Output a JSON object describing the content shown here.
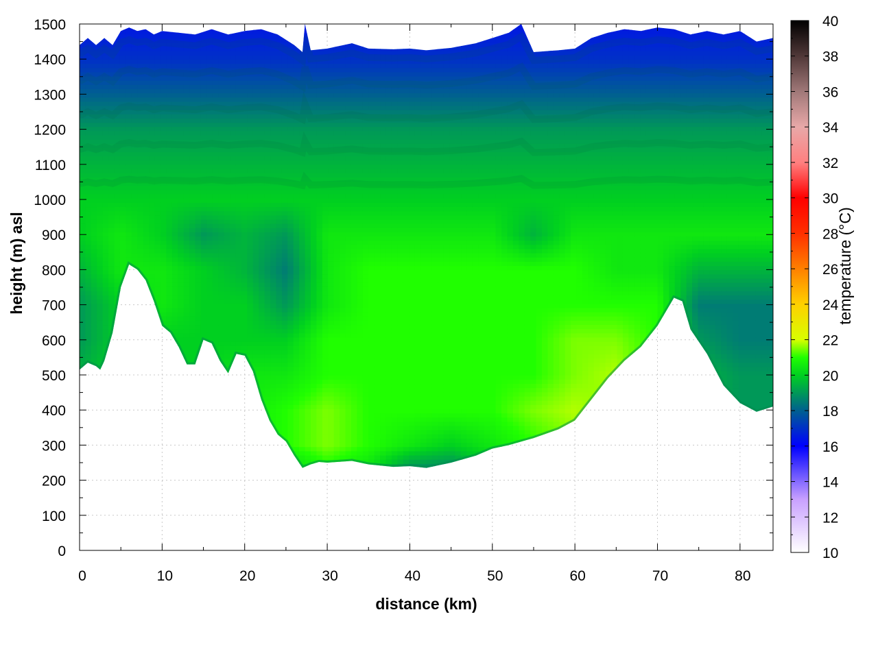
{
  "chart_data": {
    "type": "heatmap",
    "title": "",
    "xlabel": "distance (km)",
    "ylabel": "height (m) asl",
    "colorbar_label": "temperature (°C)",
    "xlim": [
      0,
      84
    ],
    "ylim": [
      0,
      1500
    ],
    "x_ticks": [
      0,
      10,
      20,
      30,
      40,
      50,
      60,
      70,
      80
    ],
    "y_ticks": [
      0,
      100,
      200,
      300,
      400,
      500,
      600,
      700,
      800,
      900,
      1000,
      1100,
      1200,
      1300,
      1400,
      1500
    ],
    "color_range": [
      10,
      40
    ],
    "color_ticks": [
      10,
      12,
      14,
      16,
      18,
      20,
      22,
      24,
      26,
      28,
      30,
      32,
      34,
      36,
      38,
      40
    ],
    "grid": true,
    "colormap": [
      {
        "value": 10,
        "color": "#ffffff"
      },
      {
        "value": 13,
        "color": "#c8a0ff"
      },
      {
        "value": 16,
        "color": "#0000ff"
      },
      {
        "value": 18,
        "color": "#006090"
      },
      {
        "value": 20,
        "color": "#00d020"
      },
      {
        "value": 21,
        "color": "#20ff00"
      },
      {
        "value": 22,
        "color": "#d8ff00"
      },
      {
        "value": 24,
        "color": "#ffd000"
      },
      {
        "value": 26,
        "color": "#ff8000"
      },
      {
        "value": 28,
        "color": "#ff3000"
      },
      {
        "value": 30,
        "color": "#ff0000"
      },
      {
        "value": 32,
        "color": "#ff8080"
      },
      {
        "value": 34,
        "color": "#e8a8a8"
      },
      {
        "value": 36,
        "color": "#a07878"
      },
      {
        "value": 38,
        "color": "#503838"
      },
      {
        "value": 40,
        "color": "#000000"
      }
    ],
    "terrain_profile": {
      "x": [
        0,
        1,
        2,
        2.5,
        3,
        4,
        5,
        6,
        7,
        8,
        9,
        10,
        11,
        12,
        13,
        14,
        15,
        16,
        17,
        18,
        19,
        20,
        21,
        22,
        23,
        24,
        25,
        26,
        27,
        28,
        29,
        30,
        33,
        35,
        38,
        40,
        42,
        45,
        48,
        50,
        52,
        55,
        58,
        60,
        62,
        64,
        66,
        68,
        70,
        72,
        73,
        74,
        76,
        78,
        80,
        82,
        84
      ],
      "height": [
        515,
        535,
        525,
        515,
        540,
        620,
        750,
        815,
        800,
        770,
        710,
        640,
        620,
        580,
        530,
        530,
        600,
        590,
        540,
        505,
        560,
        555,
        510,
        430,
        370,
        330,
        310,
        270,
        235,
        245,
        252,
        250,
        255,
        245,
        238,
        240,
        235,
        250,
        270,
        290,
        300,
        320,
        345,
        370,
        430,
        490,
        540,
        580,
        640,
        720,
        710,
        630,
        560,
        470,
        420,
        395,
        410
      ]
    },
    "top_profile": {
      "x": [
        0,
        1,
        2,
        3,
        4,
        5,
        6,
        7,
        8,
        9,
        10,
        12,
        14,
        16,
        18,
        20,
        22,
        24,
        26,
        27,
        27.3,
        28,
        30,
        33,
        35,
        38,
        40,
        42,
        45,
        48,
        50,
        52,
        53.5,
        55,
        58,
        60,
        62,
        64,
        66,
        68,
        70,
        72,
        74,
        76,
        78,
        80,
        82,
        84
      ],
      "height": [
        1440,
        1460,
        1440,
        1460,
        1440,
        1480,
        1490,
        1480,
        1485,
        1470,
        1480,
        1475,
        1470,
        1485,
        1470,
        1480,
        1485,
        1470,
        1440,
        1420,
        1500,
        1425,
        1430,
        1445,
        1430,
        1428,
        1430,
        1425,
        1432,
        1445,
        1460,
        1475,
        1500,
        1420,
        1425,
        1430,
        1460,
        1475,
        1485,
        1480,
        1490,
        1485,
        1470,
        1480,
        1470,
        1480,
        1450,
        1460
      ]
    },
    "temperature_grid": {
      "note_heights_m": [
        200,
        300,
        400,
        500,
        600,
        700,
        800,
        900,
        1000,
        1100,
        1200,
        1300,
        1400,
        1500
      ],
      "x": [
        0,
        5,
        10,
        15,
        20,
        25,
        30,
        35,
        40,
        45,
        50,
        55,
        60,
        65,
        70,
        75,
        80,
        84
      ],
      "values": [
        [
          19.5,
          19.5,
          19.5,
          19.5,
          19.5,
          19.5,
          20.5,
          20.0,
          18.0,
          18.0,
          19.5,
          20.0,
          20.5,
          21.0,
          20.5,
          19.0,
          18.5,
          18.5
        ],
        [
          20.0,
          20.0,
          20.0,
          20.0,
          20.5,
          21.0,
          21.5,
          21.0,
          20.5,
          20.0,
          20.5,
          21.0,
          21.5,
          21.5,
          21.0,
          19.5,
          19.0,
          19.0
        ],
        [
          20.0,
          20.0,
          20.0,
          20.0,
          20.5,
          21.0,
          21.5,
          21.0,
          21.0,
          21.0,
          21.0,
          21.5,
          21.8,
          21.5,
          21.0,
          19.5,
          19.0,
          19.0
        ],
        [
          19.5,
          20.0,
          20.0,
          20.0,
          20.5,
          20.5,
          21.0,
          21.0,
          21.0,
          21.0,
          21.0,
          21.0,
          21.5,
          21.8,
          21.0,
          19.5,
          19.0,
          19.0
        ],
        [
          19.0,
          20.0,
          20.0,
          20.0,
          20.0,
          20.0,
          21.0,
          21.0,
          21.0,
          21.0,
          21.0,
          21.0,
          21.5,
          21.5,
          21.0,
          19.0,
          18.5,
          18.5
        ],
        [
          19.0,
          20.0,
          20.5,
          20.0,
          20.0,
          19.0,
          20.5,
          21.0,
          21.0,
          21.0,
          21.0,
          21.0,
          21.0,
          21.0,
          21.0,
          18.5,
          18.5,
          18.5
        ],
        [
          19.5,
          20.5,
          20.5,
          20.0,
          19.5,
          18.5,
          20.5,
          21.0,
          21.0,
          21.0,
          21.0,
          21.0,
          21.0,
          20.5,
          20.5,
          19.5,
          19.5,
          19.5
        ],
        [
          20.0,
          20.5,
          20.0,
          19.0,
          19.5,
          19.0,
          20.5,
          20.5,
          20.5,
          20.5,
          20.5,
          19.5,
          20.5,
          20.5,
          20.5,
          20.5,
          20.5,
          20.5
        ],
        [
          20.0,
          20.0,
          20.0,
          20.0,
          20.0,
          20.0,
          20.0,
          20.0,
          20.0,
          20.0,
          20.0,
          20.0,
          20.0,
          20.0,
          20.0,
          20.0,
          20.0,
          20.0
        ],
        [
          19.5,
          19.5,
          19.5,
          19.5,
          19.5,
          19.5,
          19.5,
          19.5,
          19.5,
          19.5,
          19.5,
          19.5,
          19.5,
          19.5,
          19.5,
          19.5,
          19.5,
          19.5
        ],
        [
          19.0,
          19.0,
          19.0,
          19.0,
          19.0,
          19.0,
          19.0,
          19.0,
          19.0,
          19.0,
          19.0,
          19.0,
          19.0,
          19.0,
          19.0,
          19.0,
          19.0,
          19.0
        ],
        [
          18.0,
          18.0,
          18.0,
          18.0,
          18.0,
          18.0,
          18.0,
          18.0,
          18.0,
          18.0,
          18.0,
          18.0,
          18.0,
          18.0,
          18.0,
          18.0,
          18.0,
          18.0
        ],
        [
          17.0,
          17.0,
          17.0,
          17.0,
          17.0,
          17.0,
          17.0,
          17.0,
          17.0,
          17.0,
          17.0,
          17.0,
          17.0,
          17.0,
          17.0,
          17.0,
          17.0,
          17.0
        ],
        [
          16.5,
          16.5,
          16.5,
          16.5,
          16.5,
          16.5,
          16.5,
          16.5,
          16.5,
          16.5,
          16.5,
          16.5,
          16.5,
          16.5,
          16.5,
          16.5,
          16.5,
          16.5
        ]
      ]
    }
  }
}
